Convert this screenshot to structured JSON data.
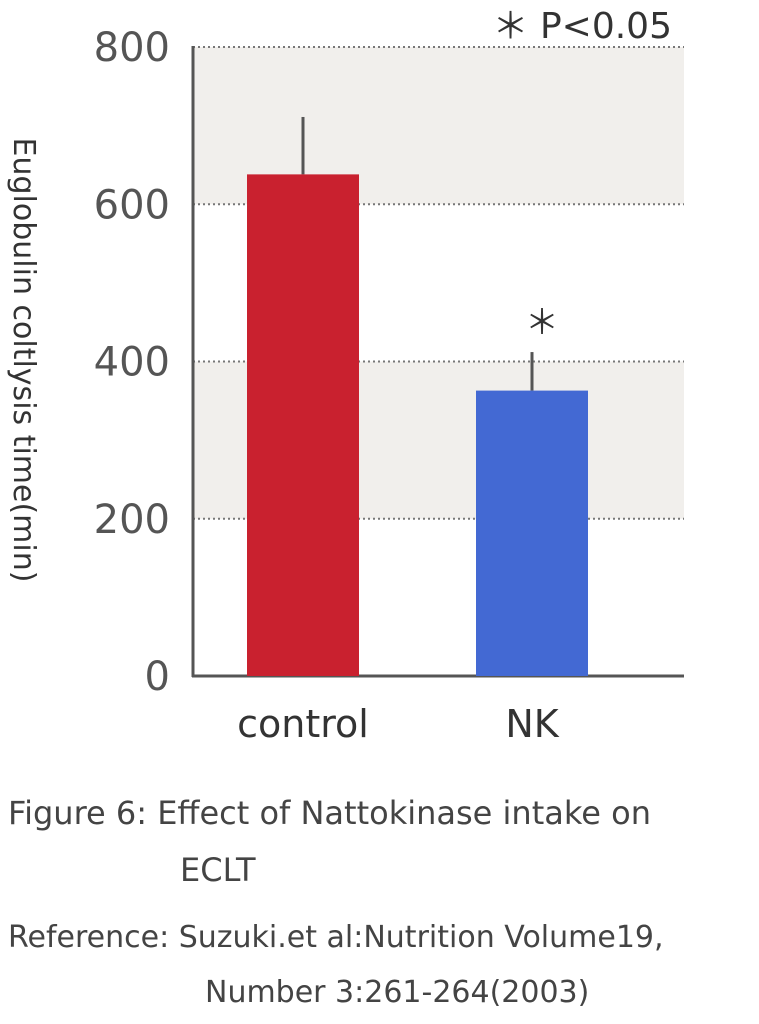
{
  "chart_data": {
    "type": "bar",
    "categories": [
      "control",
      "NK"
    ],
    "values": [
      638,
      363
    ],
    "error": [
      73,
      49
    ],
    "colors": [
      "#c9212f",
      "#4369d3"
    ],
    "ylabel": "Euglobulin coltlysis time(min)",
    "ylim": [
      0,
      800
    ],
    "yticks": [
      0,
      200,
      400,
      600,
      800
    ],
    "grid": true,
    "significance_legend": "＊ P<0.05",
    "significance_marks": [
      "",
      "＊"
    ]
  },
  "caption": {
    "line1": "Figure 6: Effect of Nattokinase intake on",
    "line2": "ECLT"
  },
  "reference": {
    "line1": "Reference: Suzuki.et al:Nutrition Volume19,",
    "line2": "Number 3:261-264(2003)"
  }
}
